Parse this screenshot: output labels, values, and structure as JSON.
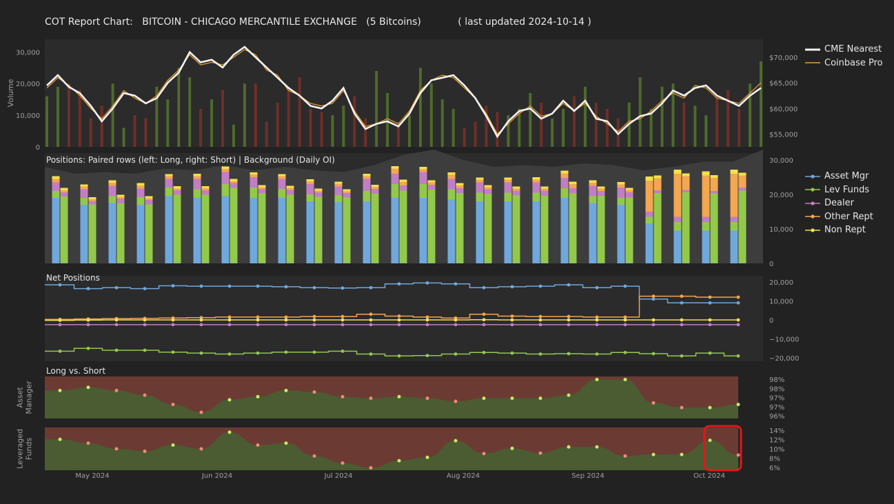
{
  "title_parts": {
    "prefix": "COT Report Chart:",
    "contract": "BITCOIN - CHICAGO MERCANTILE EXCHANGE",
    "unit": "(5 Bitcoins)",
    "updated": "( last updated 2024-10-14 )"
  },
  "colors": {
    "background": "#222222",
    "panel": "#2b2b2b",
    "cme": "#f2f2f2",
    "coinbase": "#f0a030",
    "vol_up": "#4e6a2c",
    "vol_down": "#6e2f28",
    "oi_bg": "#3d3d3d",
    "asset_mgr": "#6fa8dc",
    "lev_funds": "#93c94a",
    "dealer": "#c27ec3",
    "other_rept": "#f4a650",
    "non_rept": "#f2e24a",
    "long_fill": "#4b5c32",
    "short_fill": "#6b3b33"
  },
  "legend_price": [
    {
      "label": "CME Nearest",
      "color_key": "cme"
    },
    {
      "label": "Coinbase Pro",
      "color_key": "coinbase"
    }
  ],
  "legend_positions": [
    {
      "label": "Asset Mgr",
      "color_key": "asset_mgr"
    },
    {
      "label": "Lev Funds",
      "color_key": "lev_funds"
    },
    {
      "label": "Dealer",
      "color_key": "dealer"
    },
    {
      "label": "Other Rept",
      "color_key": "other_rept"
    },
    {
      "label": "Non Rept",
      "color_key": "non_rept"
    }
  ],
  "chart_data": [
    {
      "type": "line",
      "panel": "price_volume",
      "ylabel": "Volume",
      "y_ticks": [
        "0",
        "10,000",
        "20,000",
        "30,000"
      ],
      "y_right_ticks": [
        "$55,000",
        "$60,000",
        "$65,000",
        "$70,000"
      ],
      "series": [
        {
          "name": "CME Nearest",
          "values": [
            64500,
            66500,
            64200,
            63000,
            60500,
            57500,
            60000,
            63000,
            62500,
            61000,
            62000,
            65000,
            67000,
            71000,
            69000,
            69500,
            68000,
            70500,
            72000,
            70000,
            68000,
            66000,
            64000,
            62500,
            60500,
            60000,
            61500,
            64000,
            59000,
            56000,
            57000,
            57500,
            56500,
            59000,
            63000,
            65500,
            66000,
            66500,
            64500,
            62000,
            58500,
            54500,
            57500,
            59500,
            60000,
            58000,
            59000,
            61500,
            59500,
            61500,
            58000,
            57500,
            55000,
            57000,
            58500,
            59000,
            61000,
            63500,
            62500,
            64000,
            64500,
            62500,
            61500,
            60500,
            62500,
            64000
          ]
        },
        {
          "name": "Coinbase Pro",
          "values": [
            64000,
            66000,
            64500,
            62500,
            60000,
            58000,
            60500,
            63500,
            62000,
            61000,
            62500,
            65500,
            67500,
            70500,
            68500,
            69000,
            68500,
            70000,
            71500,
            70500,
            67500,
            66500,
            63500,
            62500,
            61000,
            60500,
            61000,
            63500,
            59500,
            56500,
            57000,
            58000,
            57000,
            59500,
            63500,
            65500,
            66500,
            66000,
            64000,
            62000,
            59000,
            55000,
            57000,
            59000,
            60500,
            58500,
            59000,
            61000,
            59500,
            61000,
            58500,
            57000,
            55500,
            57500,
            58000,
            59500,
            61500,
            63000,
            62000,
            64500,
            64000,
            62000,
            61500,
            61000,
            63000,
            65000
          ]
        },
        {
          "name": "Volume",
          "values": [
            16000,
            19000,
            20000,
            18000,
            9000,
            13000,
            20000,
            6000,
            10000,
            9000,
            19000,
            15000,
            25000,
            22000,
            12000,
            15000,
            18000,
            7000,
            20000,
            20000,
            8000,
            14000,
            19000,
            22000,
            12000,
            11000,
            10000,
            13000,
            16000,
            9000,
            24000,
            17000,
            8000,
            10000,
            25000,
            20000,
            15000,
            12000,
            6000,
            8000,
            13000,
            11000,
            10000,
            12000,
            17000,
            14000,
            9000,
            12000,
            16000,
            19000,
            14000,
            12000,
            9000,
            14000,
            22000,
            12000,
            19000,
            20000,
            14000,
            13000,
            10000,
            16000,
            18000,
            12000,
            20000,
            27000
          ]
        }
      ]
    },
    {
      "type": "bar",
      "panel": "positions",
      "title": "Positions: Paired rows (left: Long, right: Short) | Background (Daily OI)",
      "y_right_ticks": [
        "0",
        "10,000",
        "20,000",
        "30,000"
      ],
      "ylim": [
        0,
        32000
      ],
      "stack_order": [
        "Asset Mgr",
        "Lev Funds",
        "Dealer",
        "Other Rept",
        "Non Rept"
      ],
      "weeks": [
        {
          "long": [
            19000,
            2000,
            2500,
            1000,
            800
          ],
          "short": [
            100,
            19300,
            1200,
            600,
            700
          ]
        },
        {
          "long": [
            17000,
            2000,
            2500,
            800,
            600
          ],
          "short": [
            100,
            17000,
            1000,
            500,
            600
          ]
        },
        {
          "long": [
            17500,
            2000,
            3000,
            900,
            700
          ],
          "short": [
            100,
            17300,
            1400,
            500,
            600
          ]
        },
        {
          "long": [
            17000,
            2200,
            2500,
            900,
            700
          ],
          "short": [
            100,
            17000,
            1300,
            500,
            600
          ]
        },
        {
          "long": [
            19500,
            2500,
            2500,
            800,
            600
          ],
          "short": [
            100,
            19800,
            1300,
            500,
            700
          ]
        },
        {
          "long": [
            19000,
            2500,
            3000,
            800,
            700
          ],
          "short": [
            100,
            19800,
            1300,
            600,
            600
          ]
        },
        {
          "long": [
            19500,
            3500,
            3500,
            900,
            700
          ],
          "short": [
            100,
            21800,
            1400,
            500,
            700
          ]
        },
        {
          "long": [
            19000,
            3000,
            3000,
            800,
            600
          ],
          "short": [
            100,
            20200,
            1300,
            500,
            600
          ]
        },
        {
          "long": [
            19000,
            2500,
            3000,
            800,
            600
          ],
          "short": [
            100,
            19800,
            1400,
            600,
            600
          ]
        },
        {
          "long": [
            18000,
            2000,
            3000,
            800,
            600
          ],
          "short": [
            100,
            19200,
            1300,
            500,
            600
          ]
        },
        {
          "long": [
            17800,
            2000,
            2500,
            800,
            600
          ],
          "short": [
            100,
            19000,
            1300,
            500,
            600
          ]
        },
        {
          "long": [
            18000,
            3000,
            3500,
            800,
            700
          ],
          "short": [
            100,
            20100,
            1400,
            600,
            600
          ]
        },
        {
          "long": [
            19000,
            4000,
            3000,
            1500,
            700
          ],
          "short": [
            100,
            21000,
            1500,
            1000,
            700
          ]
        },
        {
          "long": [
            19000,
            4000,
            3500,
            800,
            700
          ],
          "short": [
            100,
            21300,
            1400,
            700,
            600
          ]
        },
        {
          "long": [
            18500,
            3000,
            3000,
            1200,
            700
          ],
          "short": [
            100,
            20300,
            1400,
            800,
            700
          ]
        },
        {
          "long": [
            18000,
            2500,
            3000,
            800,
            600
          ],
          "short": [
            100,
            20000,
            1400,
            600,
            600
          ]
        },
        {
          "long": [
            18000,
            2500,
            3000,
            800,
            600
          ],
          "short": [
            100,
            19600,
            1400,
            600,
            600
          ]
        },
        {
          "long": [
            18000,
            2500,
            3000,
            800,
            700
          ],
          "short": [
            100,
            19500,
            1500,
            600,
            600
          ]
        },
        {
          "long": [
            19000,
            2800,
            3000,
            1300,
            800
          ],
          "short": [
            100,
            20200,
            1500,
            1200,
            700
          ]
        },
        {
          "long": [
            17500,
            2000,
            3000,
            900,
            700
          ],
          "short": [
            100,
            19500,
            1400,
            700,
            600
          ]
        },
        {
          "long": [
            17000,
            2000,
            3000,
            900,
            700
          ],
          "short": [
            100,
            19000,
            1500,
            700,
            600
          ]
        },
        {
          "long": [
            11500,
            2000,
            1500,
            9000,
            1200
          ],
          "short": [
            100,
            20300,
            800,
            3500,
            800
          ]
        },
        {
          "long": [
            9500,
            2500,
            1500,
            12500,
            1200
          ],
          "short": [
            100,
            20500,
            700,
            4000,
            800
          ]
        },
        {
          "long": [
            9500,
            2500,
            1500,
            12000,
            1200
          ],
          "short": [
            100,
            20200,
            700,
            3800,
            800
          ]
        },
        {
          "long": [
            9500,
            2500,
            1500,
            12500,
            1200
          ],
          "short": [
            100,
            21000,
            900,
            3500,
            800
          ]
        }
      ],
      "open_interest": [
        28000,
        26000,
        26500,
        26000,
        27500,
        27000,
        28500,
        27000,
        28000,
        27000,
        26500,
        28500,
        31500,
        33000,
        30000,
        28000,
        28500,
        28000,
        29000,
        28500,
        27000,
        28000,
        29500,
        29500,
        33000
      ]
    },
    {
      "type": "line",
      "panel": "net_positions",
      "title": "Net Positions",
      "y_right_ticks": [
        "−20,000",
        "−10,000",
        "0",
        "10,000",
        "20,000"
      ],
      "ylim": [
        -22000,
        22000
      ],
      "series": [
        {
          "name": "Asset Mgr",
          "values": [
            18500,
            16500,
            17000,
            16500,
            18000,
            17800,
            17800,
            17800,
            17500,
            17000,
            16800,
            17000,
            19000,
            19500,
            19000,
            17000,
            17500,
            17800,
            18500,
            17000,
            17800,
            11000,
            9000,
            9000,
            9000
          ]
        },
        {
          "name": "Lev Funds",
          "values": [
            -16500,
            -15000,
            -16000,
            -16000,
            -17000,
            -17500,
            -18000,
            -17500,
            -17000,
            -17000,
            -16500,
            -18000,
            -19000,
            -18800,
            -18000,
            -17200,
            -17500,
            -18000,
            -17800,
            -18000,
            -17200,
            -17800,
            -19000,
            -17500,
            -19000
          ]
        },
        {
          "name": "Dealer",
          "values": [
            -2500,
            -2500,
            -2500,
            -2500,
            -2500,
            -2500,
            -2500,
            -2500,
            -2500,
            -2500,
            -2500,
            -2500,
            -2500,
            -2500,
            -2500,
            -2500,
            -2500,
            -2500,
            -2500,
            -2500,
            -2500,
            -2500,
            -2500,
            -2500,
            -2500
          ]
        },
        {
          "name": "Other Rept",
          "values": [
            300,
            500,
            700,
            800,
            1000,
            1200,
            1500,
            1500,
            1500,
            1800,
            1800,
            3000,
            2000,
            1500,
            1000,
            3000,
            2000,
            1800,
            1800,
            1500,
            1500,
            12500,
            12500,
            12000,
            12000
          ]
        },
        {
          "name": "Non Rept",
          "values": [
            -200,
            -100,
            0,
            0,
            0,
            0,
            0,
            0,
            0,
            0,
            0,
            0,
            0,
            0,
            0,
            100,
            0,
            0,
            0,
            0,
            0,
            0,
            0,
            0,
            0
          ]
        }
      ]
    },
    {
      "type": "area",
      "panel": "long_vs_short_asset_manager",
      "title": "Long vs. Short",
      "ylabel": "Asset Manager",
      "y_right_ticks": [
        "96%",
        "97%",
        "97%",
        "98%",
        "98%"
      ],
      "ylim": [
        95.8,
        98.5
      ],
      "values": [
        97.6,
        97.8,
        97.6,
        97.3,
        96.7,
        96.2,
        97.0,
        97.2,
        97.6,
        97.5,
        97.2,
        97.1,
        97.2,
        97.1,
        96.9,
        97.1,
        97.1,
        97.1,
        97.3,
        98.3,
        98.3,
        96.8,
        96.5,
        96.5,
        96.7
      ]
    },
    {
      "type": "area",
      "panel": "long_vs_short_leveraged_funds",
      "ylabel": "Leveraged Funds",
      "y_right_ticks": [
        "6%",
        "8%",
        "10%",
        "12%",
        "14%"
      ],
      "x_ticks": [
        "May 2024",
        "Jun 2024",
        "Jul 2024",
        "Aug 2024",
        "Sep 2024",
        "Oct 2024"
      ],
      "ylim": [
        5.5,
        14.5
      ],
      "values": [
        12.0,
        11.2,
        10.0,
        9.5,
        10.8,
        10.0,
        13.5,
        10.8,
        11.2,
        8.5,
        7.0,
        6.0,
        7.5,
        8.2,
        11.7,
        9.0,
        10.1,
        9.1,
        10.4,
        10.4,
        8.5,
        8.8,
        8.8,
        11.8,
        8.7
      ]
    }
  ]
}
